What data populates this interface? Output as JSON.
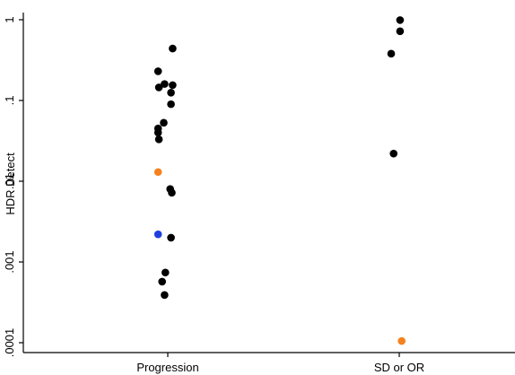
{
  "chart_data": {
    "type": "scatter",
    "title": "",
    "xlabel": "",
    "ylabel": "HDR Detect",
    "yscale": "log",
    "ylim": [
      0.0001,
      1
    ],
    "y_ticks": [
      {
        "value": 1,
        "label": "1"
      },
      {
        "value": 0.1,
        "label": ".1"
      },
      {
        "value": 0.01,
        "label": ".01"
      },
      {
        "value": 0.001,
        "label": ".001"
      },
      {
        "value": 0.0001,
        "label": ".0001"
      }
    ],
    "categories": [
      "Progression",
      "SD or OR"
    ],
    "grid": false,
    "legend": "none",
    "colors": {
      "default": "#000000",
      "orange": "#f5821f",
      "blue": "#1f3fe0"
    },
    "points": [
      {
        "category": "Progression",
        "jitter": 0.06,
        "y": 0.44,
        "color": "default"
      },
      {
        "category": "Progression",
        "jitter": -0.12,
        "y": 0.23,
        "color": "default"
      },
      {
        "category": "Progression",
        "jitter": -0.04,
        "y": 0.16,
        "color": "default"
      },
      {
        "category": "Progression",
        "jitter": 0.06,
        "y": 0.155,
        "color": "default"
      },
      {
        "category": "Progression",
        "jitter": -0.11,
        "y": 0.145,
        "color": "default"
      },
      {
        "category": "Progression",
        "jitter": 0.04,
        "y": 0.125,
        "color": "default"
      },
      {
        "category": "Progression",
        "jitter": 0.04,
        "y": 0.09,
        "color": "default"
      },
      {
        "category": "Progression",
        "jitter": -0.05,
        "y": 0.053,
        "color": "default"
      },
      {
        "category": "Progression",
        "jitter": -0.12,
        "y": 0.045,
        "color": "default"
      },
      {
        "category": "Progression",
        "jitter": -0.12,
        "y": 0.04,
        "color": "default"
      },
      {
        "category": "Progression",
        "jitter": -0.11,
        "y": 0.033,
        "color": "default"
      },
      {
        "category": "Progression",
        "jitter": -0.12,
        "y": 0.013,
        "color": "orange"
      },
      {
        "category": "Progression",
        "jitter": 0.03,
        "y": 0.008,
        "color": "default"
      },
      {
        "category": "Progression",
        "jitter": 0.05,
        "y": 0.0072,
        "color": "default"
      },
      {
        "category": "Progression",
        "jitter": -0.12,
        "y": 0.0022,
        "color": "blue"
      },
      {
        "category": "Progression",
        "jitter": 0.04,
        "y": 0.002,
        "color": "default"
      },
      {
        "category": "Progression",
        "jitter": -0.03,
        "y": 0.00074,
        "color": "default"
      },
      {
        "category": "Progression",
        "jitter": -0.07,
        "y": 0.00057,
        "color": "default"
      },
      {
        "category": "Progression",
        "jitter": -0.04,
        "y": 0.00039,
        "color": "default"
      },
      {
        "category": "SD or OR",
        "jitter": 0.01,
        "y": 0.99,
        "color": "default"
      },
      {
        "category": "SD or OR",
        "jitter": 0.01,
        "y": 0.72,
        "color": "default"
      },
      {
        "category": "SD or OR",
        "jitter": -0.1,
        "y": 0.38,
        "color": "default"
      },
      {
        "category": "SD or OR",
        "jitter": -0.07,
        "y": 0.022,
        "color": "default"
      },
      {
        "category": "SD or OR",
        "jitter": 0.03,
        "y": 0.000105,
        "color": "orange"
      }
    ]
  }
}
